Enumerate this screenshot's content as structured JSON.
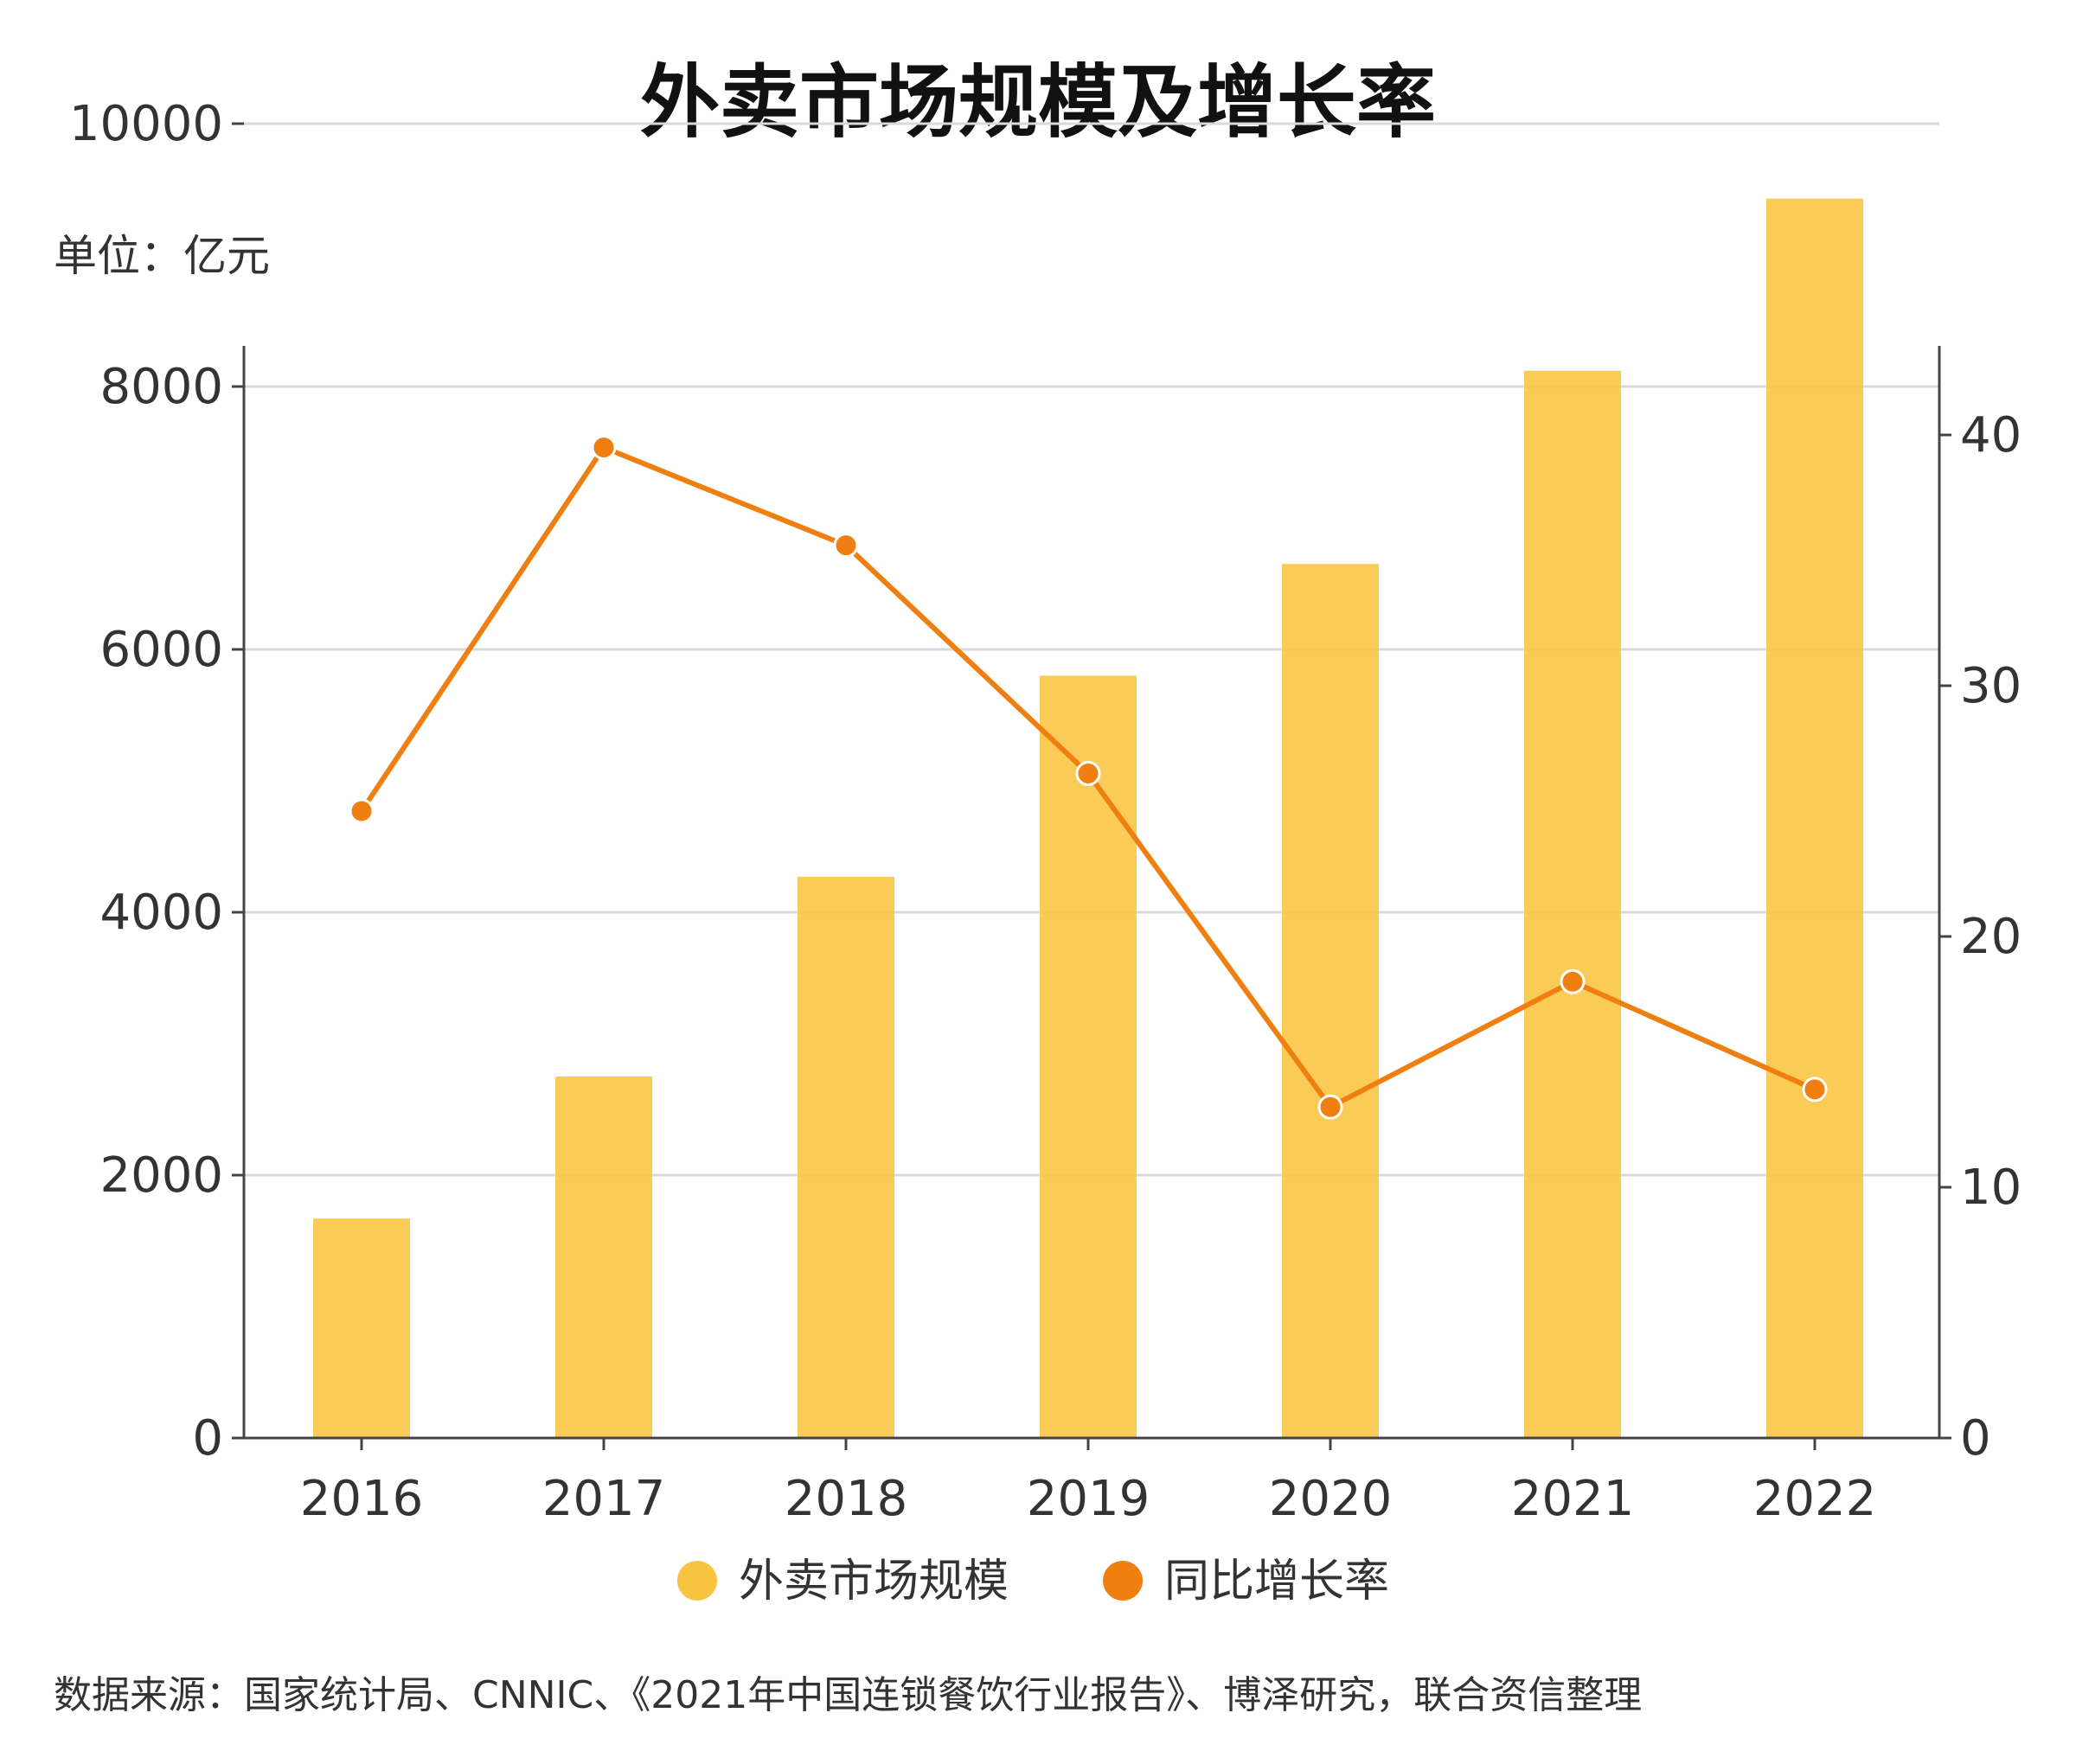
{
  "chart_data": {
    "type": "bar+line",
    "title": "外卖市场规模及增长率",
    "unit_label": "单位：亿元",
    "categories": [
      "2016",
      "2017",
      "2018",
      "2019",
      "2020",
      "2021",
      "2022"
    ],
    "series": [
      {
        "name": "外卖市场规模",
        "type": "bar",
        "axis": "left",
        "color": "#F9C440",
        "values": [
          1670,
          2750,
          4270,
          5800,
          6650,
          8120,
          9430
        ]
      },
      {
        "name": "同比增长率",
        "type": "line",
        "axis": "right",
        "color": "#F07F12",
        "values": [
          25.0,
          39.5,
          35.6,
          26.5,
          13.2,
          18.2,
          13.9
        ]
      }
    ],
    "y_left": {
      "lim": [
        0,
        10000
      ],
      "ticks": [
        "0",
        "2000",
        "4000",
        "6000",
        "8000",
        "10000"
      ]
    },
    "y_right": {
      "lim": [
        0,
        40
      ],
      "ticks": [
        "0",
        "10",
        "20",
        "30",
        "40"
      ]
    },
    "grid": true,
    "legend_position": "bottom-center"
  },
  "source_note": "数据来源：国家统计局、CNNIC、《2021年中国连锁餐饮行业报告》、博泽研究，联合资信整理"
}
